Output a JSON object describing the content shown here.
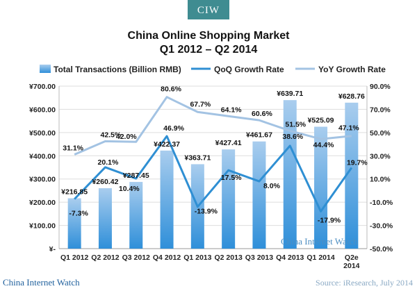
{
  "logo": {
    "text": "CIW"
  },
  "footer": {
    "left": "China Internet Watch",
    "right": "Source: iResearch, July 2014"
  },
  "watermark": "China Internet Watch",
  "colors": {
    "bar_gradient_top": "#a9cdee",
    "bar_gradient_bottom": "#2f8fd9",
    "qoq_line": "#2f8fd3",
    "yoy_line": "#a3c3e3",
    "logo_bg": "#3f8c91",
    "grid": "#dddddd"
  },
  "chart_data": {
    "type": "bar",
    "title": "China Online Shopping Market",
    "subtitle": "Q1 2012 – Q2 2014",
    "categories": [
      "Q1 2012",
      "Q2 2012",
      "Q3 2012",
      "Q4 2012",
      "Q1 2013",
      "Q2 2013",
      "Q3 2013",
      "Q4 2013",
      "Q1 2014",
      "Q2e 2014"
    ],
    "category_lines": [
      [
        "Q1 2012"
      ],
      [
        "Q2 2012"
      ],
      [
        "Q3 2012"
      ],
      [
        "Q4 2012"
      ],
      [
        "Q1 2013"
      ],
      [
        "Q2 2013"
      ],
      [
        "Q3 2013"
      ],
      [
        "Q4 2013"
      ],
      [
        "Q1 2014"
      ],
      [
        "Q2e",
        "2014"
      ]
    ],
    "series": [
      {
        "name": "Total Transactions (Billion RMB)",
        "type": "bar",
        "axis": "left",
        "values": [
          216.85,
          260.42,
          287.45,
          422.37,
          363.71,
          427.41,
          461.67,
          639.71,
          525.09,
          628.76
        ],
        "labels": [
          "¥216.85",
          "¥260.42",
          "¥287.45",
          "¥422.37",
          "¥363.71",
          "¥427.41",
          "¥461.67",
          "¥639.71",
          "¥525.09",
          "¥628.76"
        ]
      },
      {
        "name": "QoQ Growth Rate",
        "type": "line",
        "axis": "right",
        "values": [
          -7.3,
          20.1,
          10.4,
          46.9,
          -13.9,
          17.5,
          8.0,
          38.6,
          -17.9,
          19.7
        ],
        "labels": [
          "-7.3%",
          "20.1%",
          "10.4%",
          "46.9%",
          "-13.9%",
          "17.5%",
          "8.0%",
          "38.6%",
          "-17.9%",
          "19.7%"
        ]
      },
      {
        "name": "YoY Growth Rate",
        "type": "line",
        "axis": "right",
        "values": [
          31.1,
          42.5,
          42.0,
          80.6,
          67.7,
          64.1,
          60.6,
          51.5,
          44.4,
          47.1
        ],
        "labels": [
          "31.1%",
          "42.5%",
          "42.0%",
          "80.6%",
          "67.7%",
          "64.1%",
          "60.6%",
          "51.5%",
          "44.4%",
          "47.1%"
        ]
      }
    ],
    "y_left": {
      "range": [
        0,
        700
      ],
      "ticks": [
        0,
        100,
        200,
        300,
        400,
        500,
        600,
        700
      ],
      "tick_labels": [
        "¥-",
        "¥100.00",
        "¥200.00",
        "¥300.00",
        "¥400.00",
        "¥500.00",
        "¥600.00",
        "¥700.00"
      ]
    },
    "y_right": {
      "range": [
        -50,
        90
      ],
      "ticks": [
        -50,
        -30,
        -10,
        10,
        30,
        50,
        70,
        90
      ],
      "tick_labels": [
        "-50.0%",
        "-30.0%",
        "-10.0%",
        "10.0%",
        "30.0%",
        "50.0%",
        "70.0%",
        "90.0%"
      ]
    },
    "grid": true,
    "legend_position": "top"
  }
}
